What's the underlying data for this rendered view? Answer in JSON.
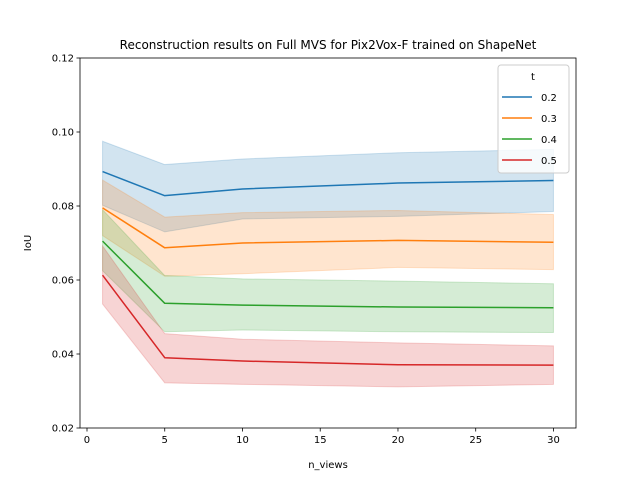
{
  "chart_data": {
    "type": "line",
    "title": "Reconstruction results on Full MVS for Pix2Vox-F trained on ShapeNet",
    "xlabel": "n_views",
    "ylabel": "IoU",
    "xlim": [
      -0.45,
      31.45
    ],
    "ylim": [
      0.02,
      0.12
    ],
    "xticks": [
      0,
      5,
      10,
      15,
      20,
      25,
      30
    ],
    "xtick_labels": [
      "0",
      "5",
      "10",
      "15",
      "20",
      "25",
      "30"
    ],
    "yticks": [
      0.02,
      0.04,
      0.06,
      0.08,
      0.1,
      0.12
    ],
    "ytick_labels": [
      "0.02",
      "0.04",
      "0.06",
      "0.08",
      "0.10",
      "0.12"
    ],
    "grid": false,
    "legend": {
      "title": "t",
      "placement": "upper right"
    },
    "x": [
      1,
      5,
      10,
      20,
      30
    ],
    "series": [
      {
        "name": "0.2",
        "color": "#1f77b4",
        "values": [
          0.0893,
          0.0828,
          0.0846,
          0.0862,
          0.0869
        ],
        "lower": [
          0.0802,
          0.073,
          0.0765,
          0.0772,
          0.0785
        ],
        "upper": [
          0.0975,
          0.0912,
          0.0927,
          0.0944,
          0.0953
        ]
      },
      {
        "name": "0.3",
        "color": "#ff7f0e",
        "values": [
          0.0795,
          0.0687,
          0.07,
          0.0707,
          0.0702
        ],
        "lower": [
          0.072,
          0.061,
          0.0617,
          0.0634,
          0.0628
        ],
        "upper": [
          0.087,
          0.077,
          0.0782,
          0.0788,
          0.0777
        ]
      },
      {
        "name": "0.4",
        "color": "#2ca02c",
        "values": [
          0.0705,
          0.0537,
          0.0532,
          0.0527,
          0.0525
        ],
        "lower": [
          0.0625,
          0.046,
          0.0465,
          0.046,
          0.0458
        ],
        "upper": [
          0.079,
          0.0612,
          0.0603,
          0.0597,
          0.059
        ]
      },
      {
        "name": "0.5",
        "color": "#d62728",
        "values": [
          0.0613,
          0.039,
          0.0381,
          0.0371,
          0.037
        ],
        "lower": [
          0.0535,
          0.0322,
          0.0318,
          0.0311,
          0.0318
        ],
        "upper": [
          0.0692,
          0.0455,
          0.044,
          0.043,
          0.0422
        ]
      }
    ]
  }
}
